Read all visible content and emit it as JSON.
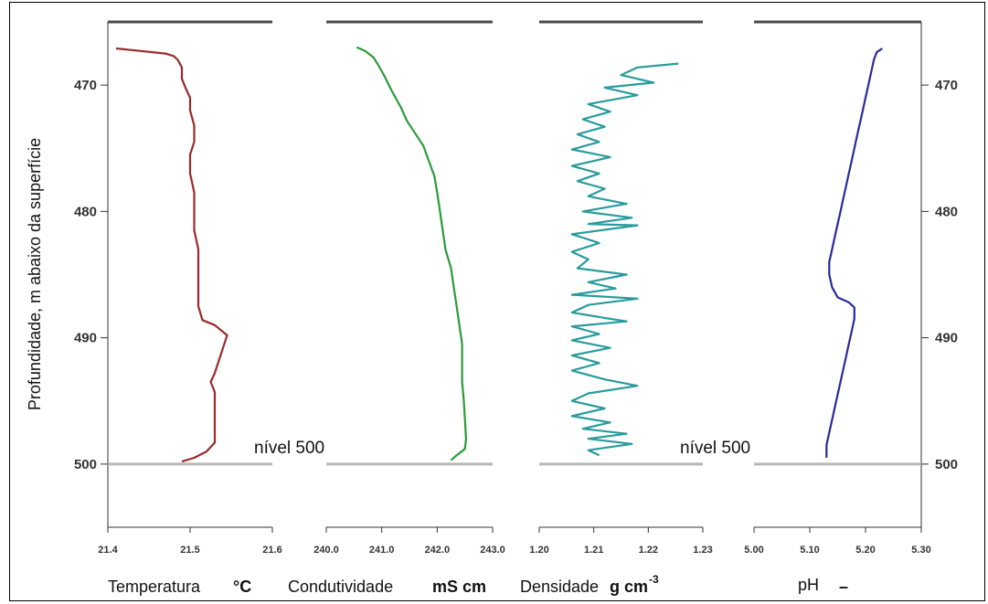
{
  "chart_data": [
    {
      "type": "line",
      "name": "temperature-panel",
      "xlabel": "Temperatura",
      "xunit": "°C",
      "ylabel": "Profundidade, m abaixo da superfície",
      "xlim": [
        21.4,
        21.6
      ],
      "ylim": [
        505,
        465
      ],
      "x_ticks": [
        "21.4",
        "21.5",
        "21.6"
      ],
      "y_ticks": [
        "470",
        "480",
        "490",
        "500"
      ],
      "color": "#9b2a2a",
      "points": [
        [
          21.41,
          467.1
        ],
        [
          21.44,
          467.3
        ],
        [
          21.47,
          467.5
        ],
        [
          21.48,
          467.7
        ],
        [
          21.485,
          468.0
        ],
        [
          21.49,
          468.6
        ],
        [
          21.49,
          469.5
        ],
        [
          21.495,
          470.3
        ],
        [
          21.5,
          471.0
        ],
        [
          21.5,
          472.0
        ],
        [
          21.505,
          473.2
        ],
        [
          21.505,
          474.5
        ],
        [
          21.5,
          475.5
        ],
        [
          21.5,
          477.0
        ],
        [
          21.505,
          478.5
        ],
        [
          21.505,
          480.0
        ],
        [
          21.505,
          481.5
        ],
        [
          21.51,
          483.0
        ],
        [
          21.51,
          484.5
        ],
        [
          21.51,
          486.0
        ],
        [
          21.51,
          487.5
        ],
        [
          21.515,
          488.6
        ],
        [
          21.53,
          489.0
        ],
        [
          21.545,
          489.8
        ],
        [
          21.54,
          490.8
        ],
        [
          21.535,
          491.8
        ],
        [
          21.53,
          492.8
        ],
        [
          21.525,
          493.5
        ],
        [
          21.53,
          494.3
        ],
        [
          21.53,
          495.5
        ],
        [
          21.53,
          496.5
        ],
        [
          21.53,
          497.5
        ],
        [
          21.53,
          498.3
        ],
        [
          21.52,
          499.0
        ],
        [
          21.505,
          499.5
        ],
        [
          21.49,
          499.8
        ]
      ]
    },
    {
      "type": "line",
      "name": "conductivity-panel",
      "xlabel": "Condutividade",
      "xunit": "mS cm",
      "xlim": [
        240.0,
        243.0
      ],
      "x_ticks": [
        "240.0",
        "241.0",
        "242.0",
        "243.0"
      ],
      "color": "#2a9b3a",
      "points": [
        [
          240.55,
          467.0
        ],
        [
          240.7,
          467.3
        ],
        [
          240.85,
          467.8
        ],
        [
          240.95,
          468.5
        ],
        [
          241.05,
          469.3
        ],
        [
          241.15,
          470.2
        ],
        [
          241.25,
          471.0
        ],
        [
          241.35,
          471.8
        ],
        [
          241.45,
          472.8
        ],
        [
          241.6,
          473.8
        ],
        [
          241.75,
          474.8
        ],
        [
          241.85,
          476.0
        ],
        [
          241.95,
          477.2
        ],
        [
          242.0,
          478.5
        ],
        [
          242.05,
          480.0
        ],
        [
          242.1,
          481.5
        ],
        [
          242.15,
          483.0
        ],
        [
          242.25,
          484.5
        ],
        [
          242.3,
          486.0
        ],
        [
          242.35,
          487.5
        ],
        [
          242.4,
          489.0
        ],
        [
          242.45,
          490.5
        ],
        [
          242.45,
          492.0
        ],
        [
          242.45,
          493.5
        ],
        [
          242.48,
          495.0
        ],
        [
          242.5,
          496.5
        ],
        [
          242.52,
          498.0
        ],
        [
          242.5,
          498.8
        ],
        [
          242.35,
          499.3
        ],
        [
          242.25,
          499.7
        ]
      ]
    },
    {
      "type": "line",
      "name": "density-panel",
      "xlabel": "Densidade",
      "xunit": "g cm",
      "xlim": [
        1.2,
        1.23
      ],
      "x_ticks": [
        "1.20",
        "1.21",
        "1.22",
        "1.23"
      ],
      "color": "#2a9b9b",
      "points": [
        [
          1.2255,
          468.3
        ],
        [
          1.218,
          468.6
        ],
        [
          1.215,
          469.2
        ],
        [
          1.221,
          469.8
        ],
        [
          1.212,
          470.2
        ],
        [
          1.218,
          470.8
        ],
        [
          1.209,
          471.5
        ],
        [
          1.213,
          472.1
        ],
        [
          1.208,
          472.7
        ],
        [
          1.212,
          473.3
        ],
        [
          1.207,
          473.9
        ],
        [
          1.211,
          474.5
        ],
        [
          1.206,
          475.1
        ],
        [
          1.213,
          475.7
        ],
        [
          1.206,
          476.4
        ],
        [
          1.211,
          477.0
        ],
        [
          1.207,
          477.6
        ],
        [
          1.212,
          478.2
        ],
        [
          1.209,
          478.8
        ],
        [
          1.216,
          479.4
        ],
        [
          1.208,
          480.0
        ],
        [
          1.217,
          480.5
        ],
        [
          1.209,
          481.0
        ],
        [
          1.218,
          481.1
        ],
        [
          1.206,
          481.8
        ],
        [
          1.211,
          482.5
        ],
        [
          1.206,
          483.2
        ],
        [
          1.209,
          483.8
        ],
        [
          1.207,
          484.5
        ],
        [
          1.216,
          485.0
        ],
        [
          1.209,
          485.6
        ],
        [
          1.214,
          486.1
        ],
        [
          1.206,
          486.6
        ],
        [
          1.218,
          486.9
        ],
        [
          1.209,
          487.4
        ],
        [
          1.206,
          488.0
        ],
        [
          1.213,
          488.5
        ],
        [
          1.216,
          488.7
        ],
        [
          1.206,
          489.1
        ],
        [
          1.211,
          489.7
        ],
        [
          1.206,
          490.2
        ],
        [
          1.213,
          490.8
        ],
        [
          1.206,
          491.4
        ],
        [
          1.211,
          492.0
        ],
        [
          1.206,
          492.6
        ],
        [
          1.212,
          493.3
        ],
        [
          1.218,
          493.8
        ],
        [
          1.209,
          494.4
        ],
        [
          1.206,
          495.0
        ],
        [
          1.212,
          495.6
        ],
        [
          1.206,
          496.2
        ],
        [
          1.213,
          496.7
        ],
        [
          1.208,
          497.2
        ],
        [
          1.216,
          497.6
        ],
        [
          1.209,
          498.0
        ],
        [
          1.217,
          498.4
        ],
        [
          1.209,
          498.9
        ],
        [
          1.211,
          499.3
        ]
      ]
    },
    {
      "type": "line",
      "name": "ph-panel",
      "xlabel": "pH",
      "xunit": "–",
      "xlim": [
        5.0,
        5.3
      ],
      "x_ticks": [
        "5.00",
        "5.10",
        "5.20",
        "5.30"
      ],
      "y_ticks": [
        "470",
        "480",
        "490",
        "500"
      ],
      "color": "#2a2a9b",
      "points": [
        [
          5.23,
          467.1
        ],
        [
          5.22,
          467.4
        ],
        [
          5.215,
          468.0
        ],
        [
          5.21,
          469.0
        ],
        [
          5.205,
          470.0
        ],
        [
          5.2,
          471.0
        ],
        [
          5.195,
          472.0
        ],
        [
          5.19,
          473.0
        ],
        [
          5.185,
          474.0
        ],
        [
          5.18,
          475.0
        ],
        [
          5.175,
          476.0
        ],
        [
          5.17,
          477.0
        ],
        [
          5.165,
          478.0
        ],
        [
          5.16,
          479.0
        ],
        [
          5.155,
          480.0
        ],
        [
          5.15,
          481.0
        ],
        [
          5.145,
          482.0
        ],
        [
          5.14,
          483.0
        ],
        [
          5.135,
          484.0
        ],
        [
          5.135,
          485.0
        ],
        [
          5.14,
          486.0
        ],
        [
          5.15,
          486.8
        ],
        [
          5.17,
          487.2
        ],
        [
          5.18,
          487.6
        ],
        [
          5.18,
          488.5
        ],
        [
          5.175,
          489.5
        ],
        [
          5.17,
          490.5
        ],
        [
          5.165,
          491.5
        ],
        [
          5.16,
          492.5
        ],
        [
          5.155,
          493.5
        ],
        [
          5.15,
          494.5
        ],
        [
          5.145,
          495.5
        ],
        [
          5.14,
          496.5
        ],
        [
          5.135,
          497.5
        ],
        [
          5.13,
          498.5
        ],
        [
          5.13,
          499.5
        ]
      ]
    }
  ],
  "annotations": {
    "level_left": "nível 500",
    "level_right": "nível 500"
  },
  "superscript": {
    "density_exp": "-3"
  },
  "colors": {
    "top_bar": "#4a4a4a",
    "level_line": "#b8b8b8"
  }
}
